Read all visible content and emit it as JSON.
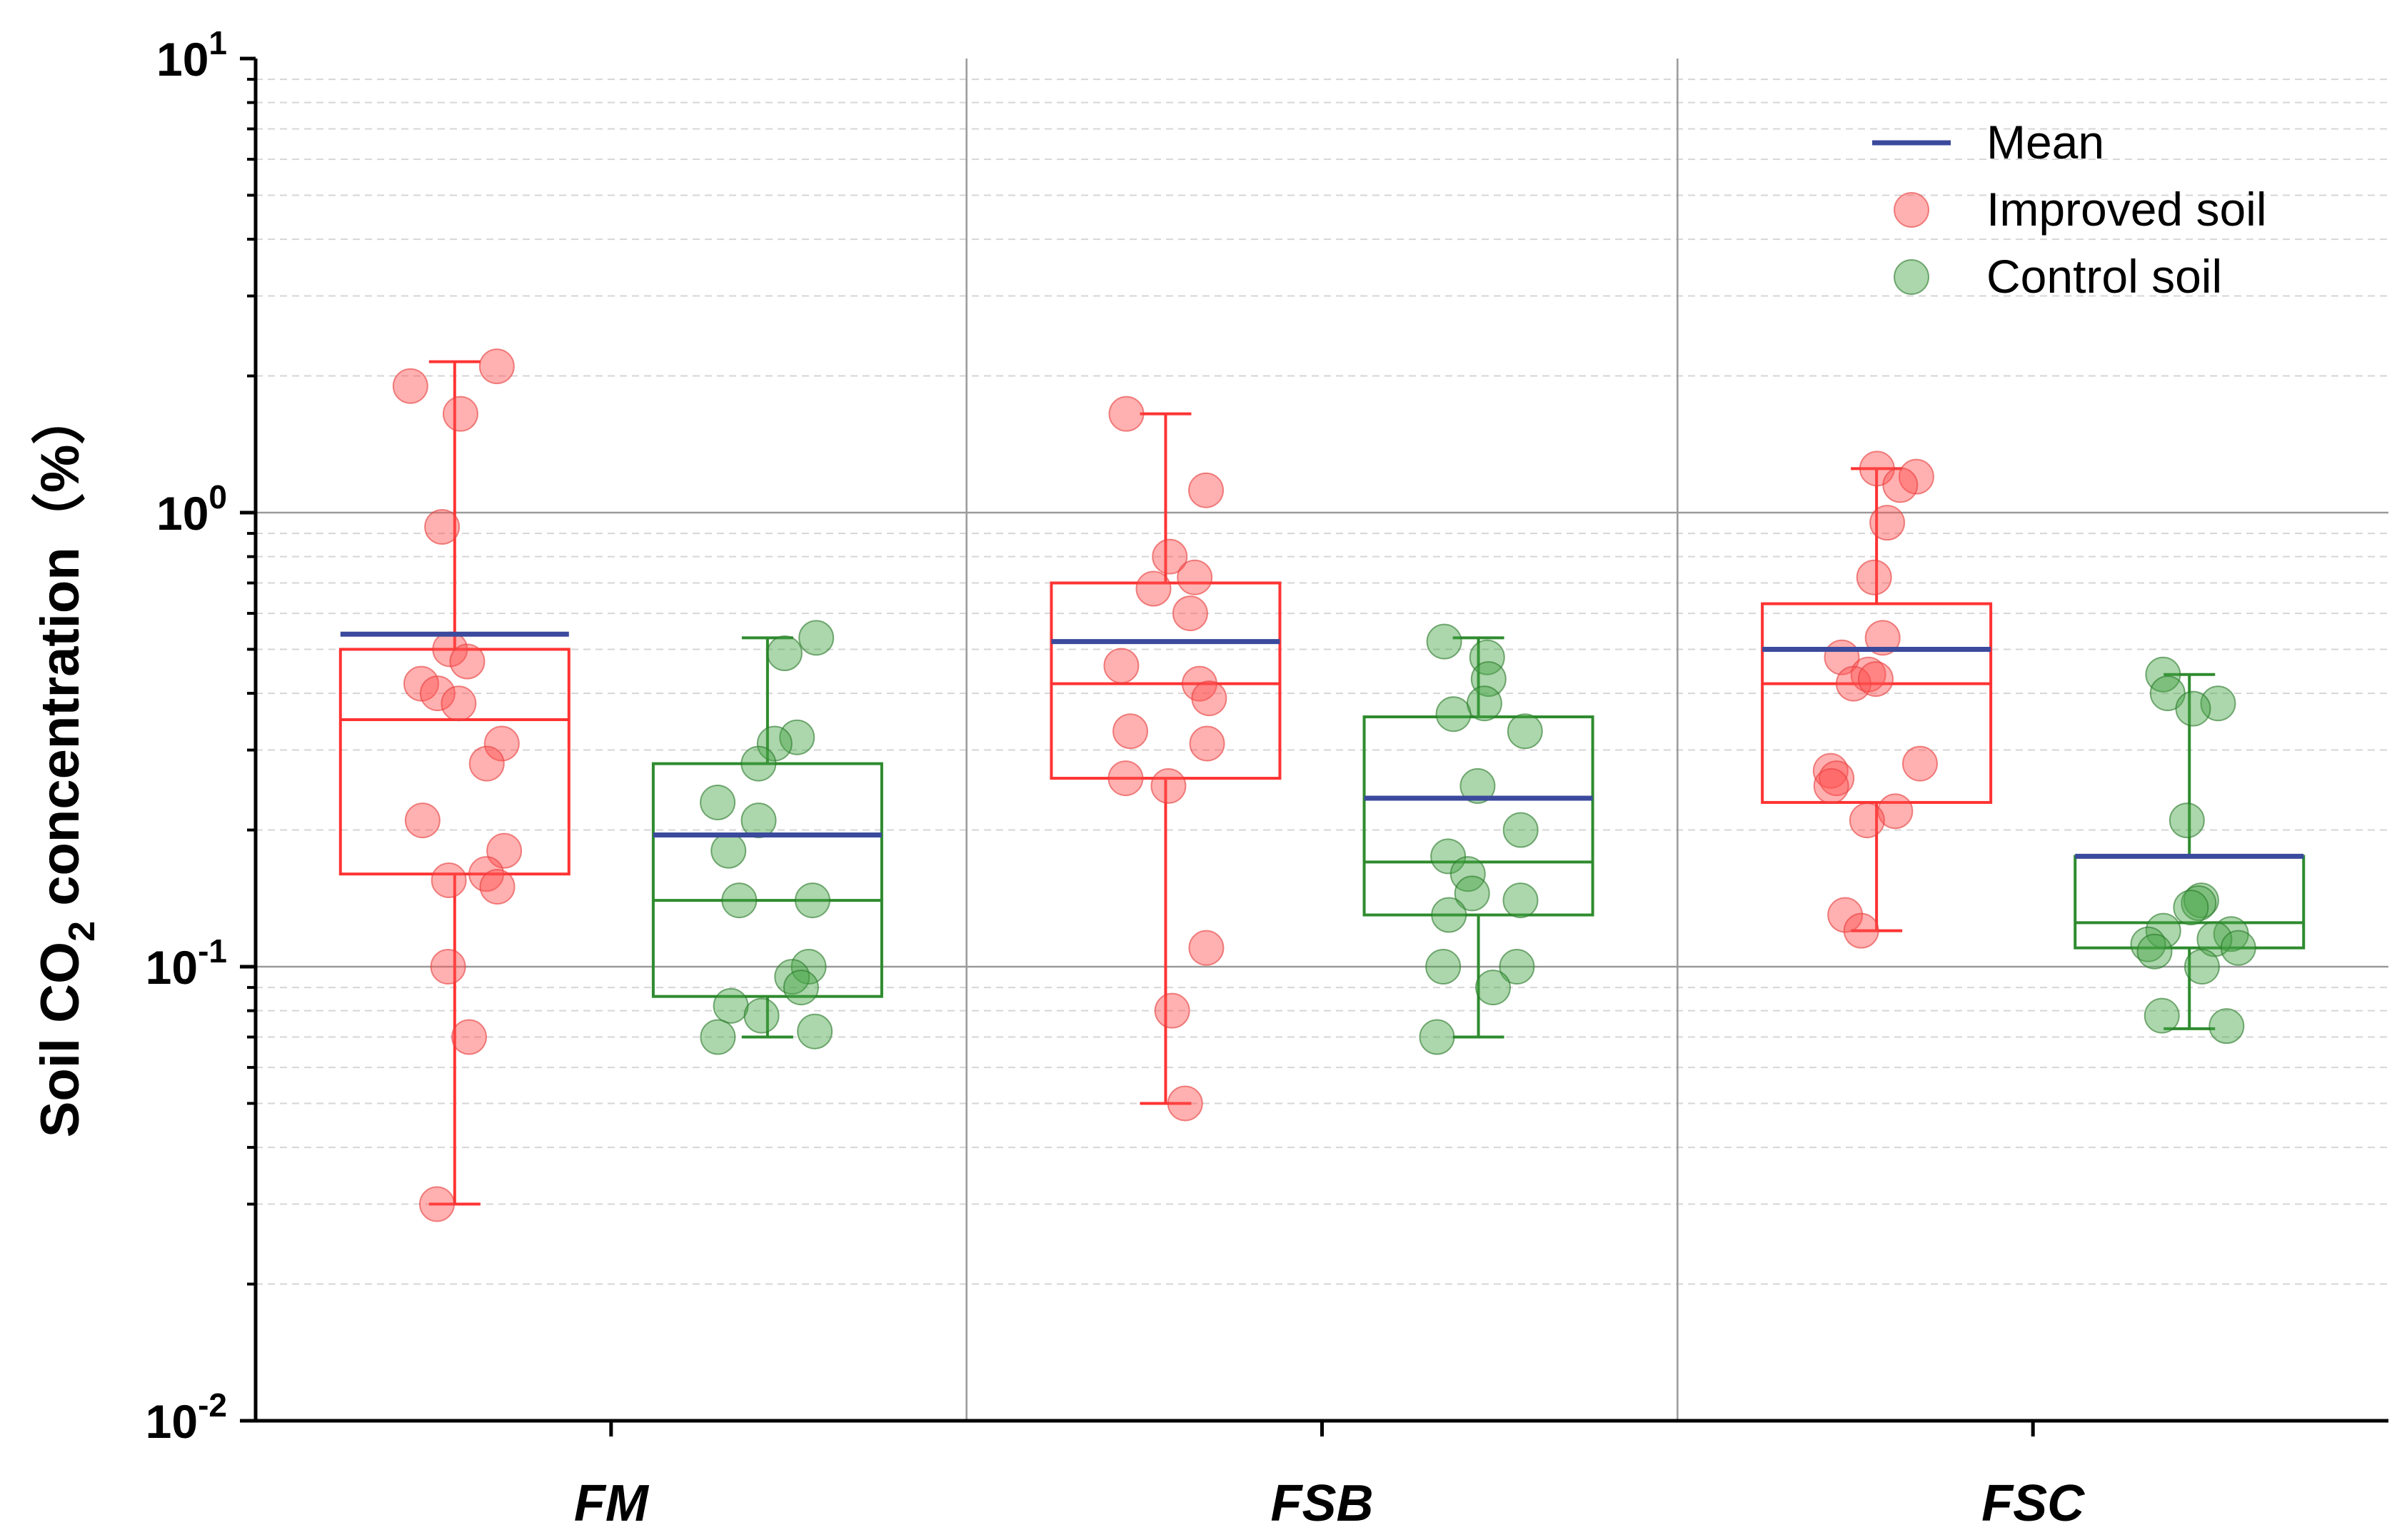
{
  "chart_data": {
    "type": "box-scatter",
    "title": "",
    "xlabel": "",
    "ylabel": {
      "main": "Soil CO",
      "subscript": "2",
      "rest": " concentration（%）"
    },
    "yscale": "log",
    "ylim": [
      0.01,
      10
    ],
    "yticks": [
      {
        "value": 0.01,
        "base": "10",
        "exp": "-2"
      },
      {
        "value": 0.1,
        "base": "10",
        "exp": "-1"
      },
      {
        "value": 1,
        "base": "10",
        "exp": "0"
      },
      {
        "value": 10,
        "base": "10",
        "exp": "1"
      }
    ],
    "categories": [
      "FM",
      "FSB",
      "FSC"
    ],
    "legend": {
      "position": "top-right",
      "items": [
        {
          "label": "Mean",
          "kind": "line",
          "color": "#3b4a9c"
        },
        {
          "label": "Improved soil",
          "kind": "dot",
          "color": "#ff5a5a"
        },
        {
          "label": "Control soil",
          "kind": "dot",
          "color": "#4aa84a"
        }
      ]
    },
    "colors": {
      "improved": "#ff3333",
      "control": "#2e8b2e",
      "mean": "#3b4a9c"
    },
    "series": [
      {
        "name": "Improved soil",
        "groups": [
          {
            "category": "FM",
            "q1": 0.16,
            "median": 0.35,
            "q3": 0.5,
            "whisker_low": 0.03,
            "whisker_high": 2.15,
            "mean": 0.54,
            "points": [
              2.1,
              1.9,
              1.65,
              0.93,
              0.5,
              0.47,
              0.42,
              0.4,
              0.38,
              0.31,
              0.28,
              0.21,
              0.18,
              0.16,
              0.155,
              0.15,
              0.1,
              0.07,
              0.03
            ]
          },
          {
            "category": "FSB",
            "q1": 0.26,
            "median": 0.42,
            "q3": 0.7,
            "whisker_low": 0.05,
            "whisker_high": 1.65,
            "mean": 0.52,
            "points": [
              1.65,
              1.12,
              0.8,
              0.72,
              0.68,
              0.6,
              0.46,
              0.42,
              0.39,
              0.33,
              0.31,
              0.26,
              0.25,
              0.11,
              0.08,
              0.05
            ]
          },
          {
            "category": "FSC",
            "q1": 0.23,
            "median": 0.42,
            "q3": 0.63,
            "whisker_low": 0.12,
            "whisker_high": 1.25,
            "mean": 0.5,
            "points": [
              1.25,
              1.2,
              1.15,
              0.95,
              0.72,
              0.53,
              0.48,
              0.44,
              0.42,
              0.43,
              0.28,
              0.27,
              0.26,
              0.25,
              0.22,
              0.21,
              0.13,
              0.12
            ]
          }
        ]
      },
      {
        "name": "Control soil",
        "groups": [
          {
            "category": "FM",
            "q1": 0.086,
            "median": 0.14,
            "q3": 0.28,
            "whisker_low": 0.07,
            "whisker_high": 0.53,
            "mean": 0.195,
            "points": [
              0.53,
              0.49,
              0.32,
              0.31,
              0.28,
              0.23,
              0.21,
              0.18,
              0.14,
              0.14,
              0.1,
              0.095,
              0.09,
              0.082,
              0.078,
              0.072,
              0.07
            ]
          },
          {
            "category": "FSB",
            "q1": 0.13,
            "median": 0.17,
            "q3": 0.355,
            "whisker_low": 0.07,
            "whisker_high": 0.53,
            "mean": 0.235,
            "points": [
              0.52,
              0.48,
              0.43,
              0.38,
              0.36,
              0.33,
              0.25,
              0.2,
              0.175,
              0.16,
              0.145,
              0.14,
              0.13,
              0.1,
              0.1,
              0.09,
              0.07
            ]
          },
          {
            "category": "FSC",
            "q1": 0.11,
            "median": 0.125,
            "q3": 0.175,
            "whisker_low": 0.073,
            "whisker_high": 0.44,
            "mean": 0.175,
            "points": [
              0.44,
              0.4,
              0.38,
              0.37,
              0.21,
              0.14,
              0.138,
              0.135,
              0.12,
              0.118,
              0.115,
              0.112,
              0.11,
              0.108,
              0.1,
              0.078,
              0.074
            ]
          }
        ]
      }
    ]
  }
}
